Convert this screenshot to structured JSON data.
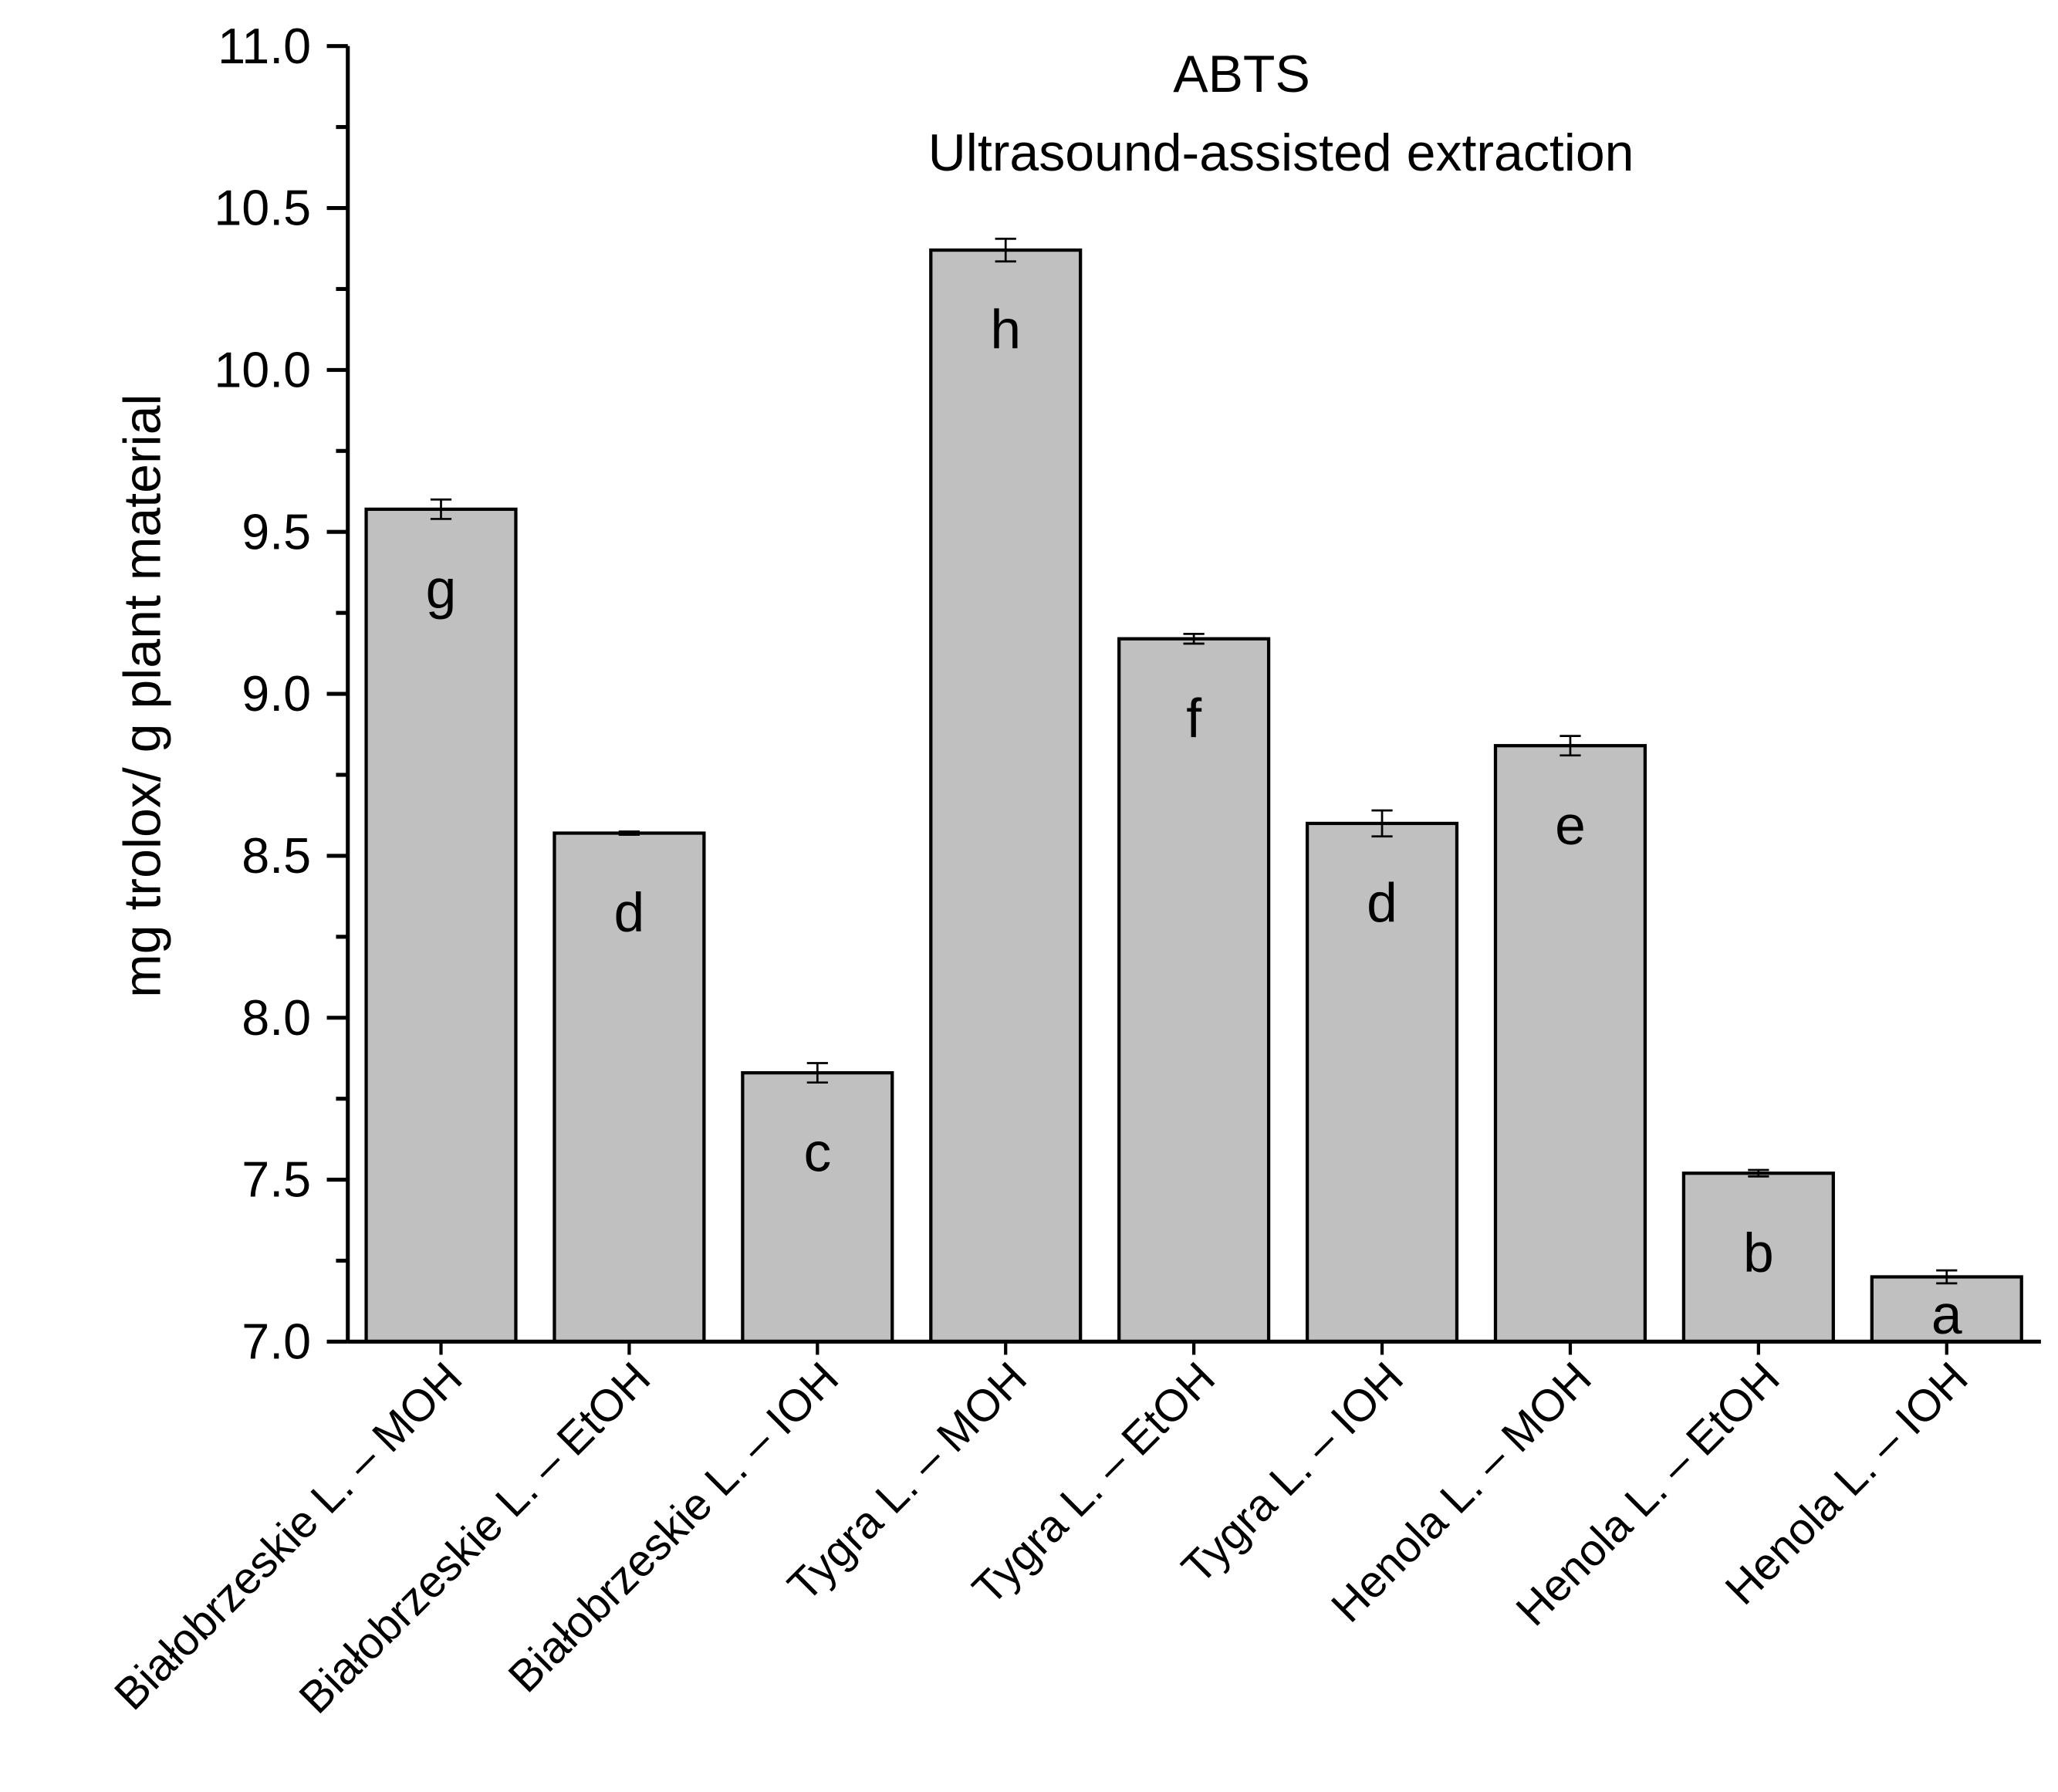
{
  "chart_data": {
    "type": "bar",
    "title": "ABTS",
    "subtitle": "Ultrasound-assisted extraction",
    "xlabel": "",
    "ylabel": "mg trolox/ g plant material",
    "ylim": [
      7.0,
      11.0
    ],
    "yticks": [
      "7.0",
      "7.5",
      "8.0",
      "8.5",
      "9.0",
      "9.5",
      "10.0",
      "10.5",
      "11.0"
    ],
    "grid": false,
    "bar_color": "#c0c0c0",
    "categories": [
      "Białobrzeskie L. – MOH",
      "Białobrzeskie L. – EtOH",
      "Białobrzeskie L. – IOH",
      "Tygra L. – MOH",
      "Tygra L. – EtOH",
      "Tygra L. – IOH",
      "Henola L. – MOH",
      "Henola L. – EtOH",
      "Henola L. – IOH"
    ],
    "values": [
      9.57,
      8.57,
      7.83,
      10.37,
      9.17,
      8.6,
      8.84,
      7.52,
      7.2
    ],
    "errors": [
      0.03,
      0.005,
      0.03,
      0.035,
      0.015,
      0.04,
      0.03,
      0.01,
      0.02
    ],
    "letters": [
      "g",
      "d",
      "c",
      "h",
      "f",
      "d",
      "e",
      "b",
      "a"
    ]
  }
}
